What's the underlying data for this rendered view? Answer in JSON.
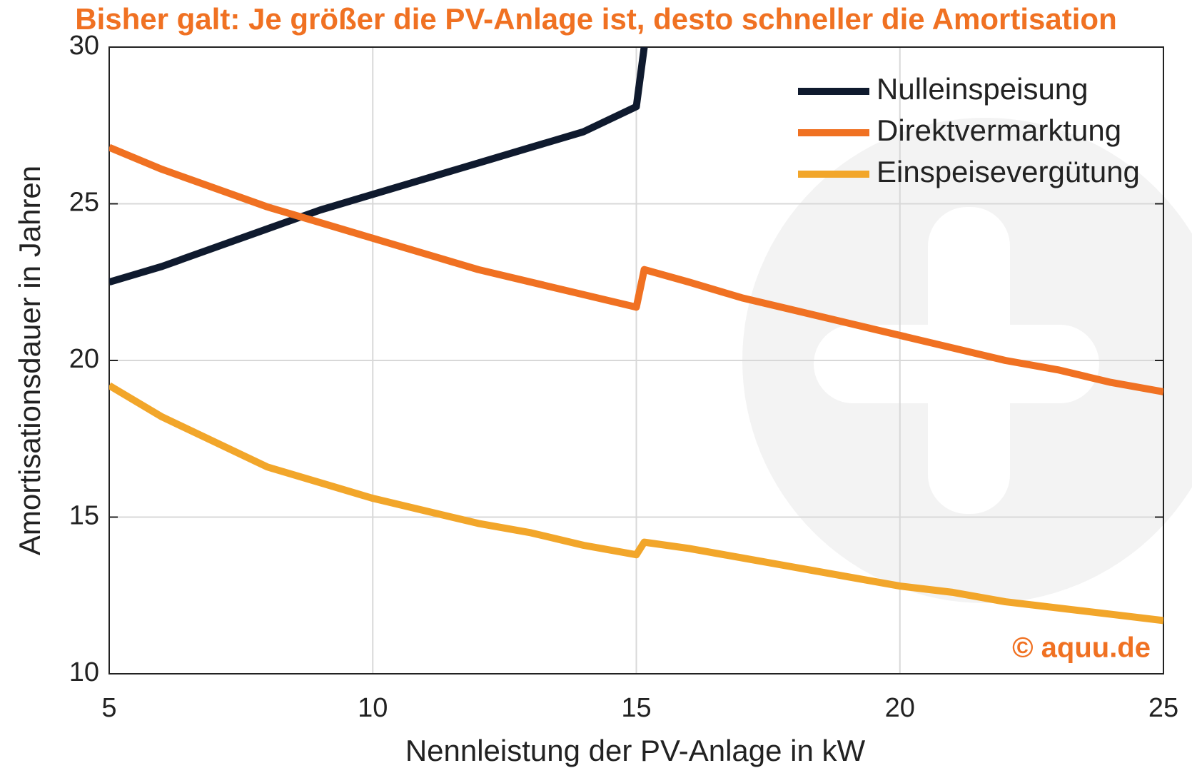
{
  "chart_data": {
    "type": "line",
    "title": "Bisher galt: Je größer die PV-Anlage ist, desto schneller die Amortisation",
    "xlabel": "Nennleistung der PV-Anlage in kW",
    "ylabel": "Amortisationsdauer in Jahren",
    "annotation": "© aquu.de",
    "xlim": [
      5,
      25
    ],
    "xticks": [
      5,
      10,
      15,
      20,
      25
    ],
    "ylim": [
      10,
      30
    ],
    "yticks": [
      10,
      15,
      20,
      25,
      30
    ],
    "grid": true,
    "legend": "upper right",
    "series": [
      {
        "name": "Nulleinspeisung",
        "color": "#0f1a2e",
        "x": [
          5,
          6,
          7,
          8,
          9,
          10,
          11,
          12,
          13,
          14,
          15,
          15.15
        ],
        "values": [
          22.5,
          23,
          23.6,
          24.2,
          24.8,
          25.3,
          25.8,
          26.3,
          26.8,
          27.3,
          28.1,
          30
        ]
      },
      {
        "name": "Direktvermarktung",
        "color": "#f07122",
        "x": [
          5,
          6,
          7,
          8,
          9,
          10,
          11,
          12,
          13,
          14,
          15,
          15.15,
          16,
          17,
          18,
          19,
          20,
          21,
          22,
          23,
          24,
          25
        ],
        "values": [
          26.8,
          26.1,
          25.5,
          24.9,
          24.4,
          23.9,
          23.4,
          22.9,
          22.5,
          22.1,
          21.7,
          22.9,
          22.5,
          22.0,
          21.6,
          21.2,
          20.8,
          20.4,
          20.0,
          19.7,
          19.3,
          19.0
        ]
      },
      {
        "name": "Einspeisevergütung",
        "color": "#f2a62a",
        "x": [
          5,
          6,
          7,
          8,
          9,
          10,
          11,
          12,
          13,
          14,
          15,
          15.15,
          16,
          17,
          18,
          19,
          20,
          21,
          22,
          23,
          24,
          25
        ],
        "values": [
          19.2,
          18.2,
          17.4,
          16.6,
          16.1,
          15.6,
          15.2,
          14.8,
          14.5,
          14.1,
          13.8,
          14.2,
          14.0,
          13.7,
          13.4,
          13.1,
          12.8,
          12.6,
          12.3,
          12.1,
          11.9,
          11.7
        ]
      }
    ]
  }
}
